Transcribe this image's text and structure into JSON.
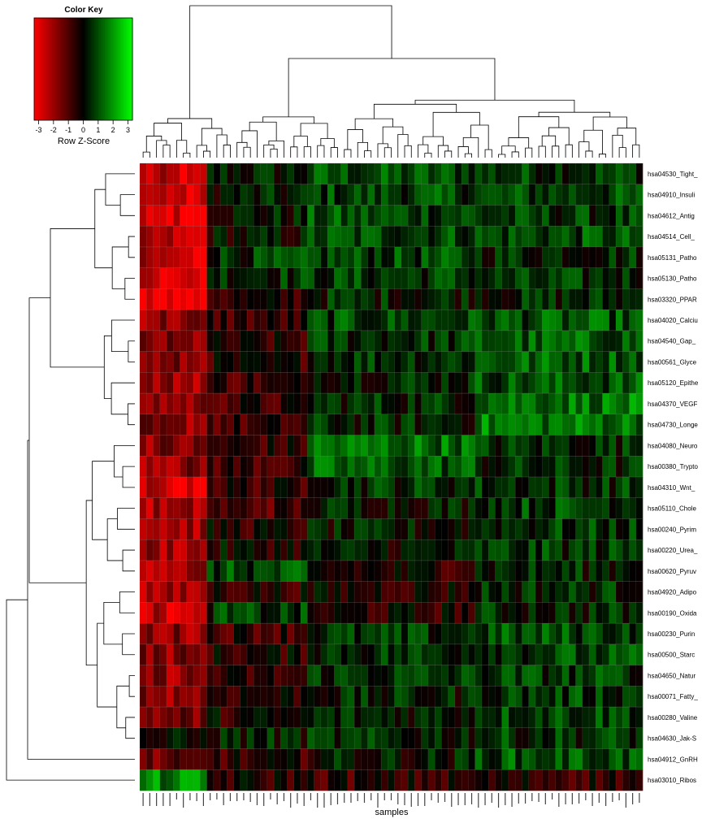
{
  "chart_data": {
    "type": "heatmap",
    "xlabel": "samples",
    "color_key": {
      "title": "Color Key",
      "label": "Row Z-Score",
      "ticks": [
        -3,
        -2,
        -1,
        0,
        1,
        2,
        3
      ],
      "range": [
        -3.3,
        3.3
      ],
      "low_color": "#ff0000",
      "mid_color": "#000000",
      "high_color": "#00ff00"
    },
    "row_labels": [
      "hsa04530_Tight_",
      "hsa04910_Insuli",
      "hsa04612_Antig",
      "hsa04514_Cell_",
      "hsa05131_Patho",
      "hsa05130_Patho",
      "hsa03320_PPAR",
      "hsa04020_Calciu",
      "hsa04540_Gap_",
      "hsa00561_Glyce",
      "hsa05120_Epithe",
      "hsa04370_VEGF",
      "hsa04730_Longe",
      "hsa04080_Neuro",
      "hsa00380_Trypto",
      "hsa04310_Wnt_",
      "hsa05110_Chole",
      "hsa00240_Pyrim",
      "hsa00220_Urea_",
      "hsa00620_Pyruv",
      "hsa04920_Adipo",
      "hsa00190_Oxida",
      "hsa00230_Purin",
      "hsa00500_Starc",
      "hsa04650_Natur",
      "hsa00071_Fatty_",
      "hsa00280_Valine",
      "hsa04630_Jak-S",
      "hsa04912_GnRH",
      "hsa03010_Ribos"
    ],
    "n_columns": 75,
    "row_dendrogram_order": [
      0,
      1,
      2,
      3,
      4,
      5,
      6,
      7,
      8,
      9,
      10,
      11,
      12,
      13,
      14,
      15,
      16,
      17,
      18,
      19,
      20,
      21,
      22,
      23,
      24,
      25,
      26,
      27,
      28,
      29
    ],
    "row_patterns": [
      [
        -2.6,
        0.3,
        0.9,
        0.7
      ],
      [
        -2.4,
        0.2,
        0.8,
        0.8
      ],
      [
        -2.8,
        0.2,
        0.9,
        0.6
      ],
      [
        -2.5,
        0.0,
        0.9,
        0.9
      ],
      [
        -2.4,
        0.6,
        0.8,
        0.5
      ],
      [
        -2.4,
        0.6,
        0.7,
        0.5
      ],
      [
        -3.1,
        -0.5,
        0.4,
        0.4
      ],
      [
        -1.8,
        -0.7,
        0.8,
        1.0
      ],
      [
        -1.8,
        -0.6,
        0.6,
        1.1
      ],
      [
        -1.8,
        -0.5,
        0.7,
        1.2
      ],
      [
        -1.9,
        -0.7,
        0.5,
        1.0
      ],
      [
        -1.8,
        -0.7,
        0.5,
        1.5
      ],
      [
        -1.8,
        -0.8,
        0.4,
        1.5
      ],
      [
        -1.7,
        -0.6,
        1.4,
        0.5
      ],
      [
        -1.8,
        -0.7,
        1.1,
        0.4
      ],
      [
        -2.6,
        -0.6,
        0.6,
        0.6
      ],
      [
        -2.2,
        -0.9,
        0.3,
        0.8
      ],
      [
        -2.0,
        -0.4,
        0.1,
        0.6
      ],
      [
        -2.0,
        -0.2,
        0.1,
        0.6
      ],
      [
        -2.0,
        0.8,
        -0.3,
        0.4
      ],
      [
        -2.3,
        -0.4,
        -0.3,
        0.5
      ],
      [
        -2.5,
        0.6,
        -0.4,
        0.4
      ],
      [
        -1.8,
        -0.6,
        0.5,
        0.9
      ],
      [
        -1.7,
        -0.4,
        0.6,
        0.8
      ],
      [
        -1.8,
        -0.7,
        0.6,
        0.7
      ],
      [
        -1.7,
        -0.3,
        0.3,
        0.7
      ],
      [
        -1.5,
        -0.3,
        0.4,
        0.9
      ],
      [
        -0.2,
        0.3,
        0.4,
        0.6
      ],
      [
        -1.5,
        -0.6,
        0.2,
        1.0
      ],
      [
        1.6,
        -0.4,
        -0.6,
        -0.5
      ]
    ],
    "column_groups": "first 10 samples strongly red, samples 11-25 mixed red, remaining samples mostly green"
  }
}
